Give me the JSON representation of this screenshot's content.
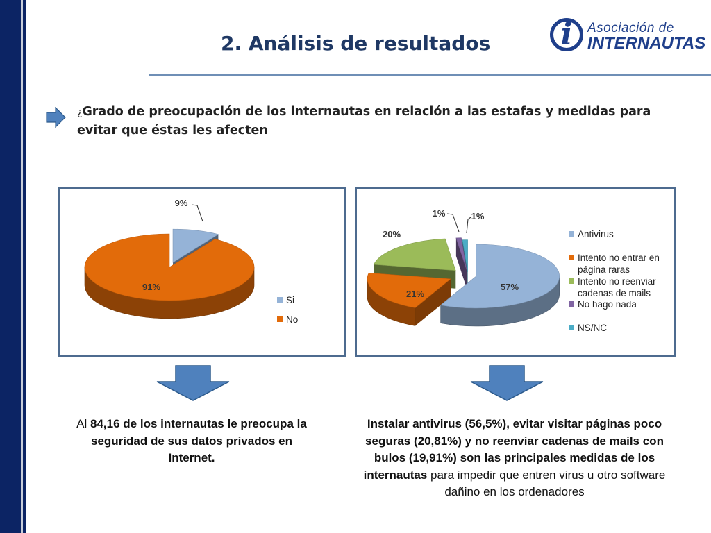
{
  "slide": {
    "title": "2. Análisis de resultados",
    "logo_line1": "Asociación de",
    "logo_line2": "INTERNAUTAS",
    "question_mark": "¿",
    "question": "Grado de preocupación de los internautas en relación a las estafas y medidas para evitar que éstas les afecten"
  },
  "colors": {
    "sidebar": "#0c2464",
    "title": "#1f3864",
    "frame": "#4d6b8f",
    "arrow": "#4f81bd"
  },
  "captions": {
    "left": {
      "pre": "Al ",
      "bold": "84,16 de los internautas le preocupa la seguridad de sus datos privados en Internet."
    },
    "right": {
      "bold": "Instalar antivirus (56,5%), evitar visitar páginas poco seguras (20,81%) y  no reenviar cadenas de mails con bulos (19,91%) son las principales medidas de los internautas",
      "rest": " para impedir que entren virus u otro software dañino en los ordenadores"
    }
  },
  "chart_data": [
    {
      "type": "pie",
      "style": "3d-exploded",
      "legend_position": "right",
      "slices": [
        {
          "name": "Si",
          "value": 9,
          "label": "9%",
          "color": "#95b3d7"
        },
        {
          "name": "No",
          "value": 91,
          "label": "91%",
          "color": "#e26b0a"
        }
      ]
    },
    {
      "type": "pie",
      "style": "3d-exploded",
      "legend_position": "right",
      "slices": [
        {
          "name": "Antivirus",
          "value": 57,
          "label": "57%",
          "color": "#95b3d7"
        },
        {
          "name": "Intento no entrar en página raras",
          "value": 21,
          "label": "21%",
          "color": "#e26b0a"
        },
        {
          "name": "Intento no reenviar cadenas de mails",
          "value": 20,
          "label": "20%",
          "color": "#9bbb59"
        },
        {
          "name": "No hago nada",
          "value": 1,
          "label": "1%",
          "color": "#8064a2"
        },
        {
          "name": "NS/NC",
          "value": 1,
          "label": "1%",
          "color": "#4bacc6"
        }
      ]
    }
  ]
}
